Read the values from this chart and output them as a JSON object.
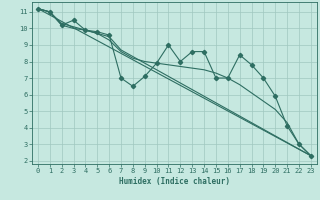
{
  "xlabel": "Humidex (Indice chaleur)",
  "bg_color": "#c6e8e0",
  "grid_color": "#a0c8bf",
  "line_color": "#2e6e62",
  "xlim": [
    -0.5,
    23.5
  ],
  "ylim": [
    1.8,
    11.6
  ],
  "yticks": [
    2,
    3,
    4,
    5,
    6,
    7,
    8,
    9,
    10,
    11
  ],
  "xticks": [
    0,
    1,
    2,
    3,
    4,
    5,
    6,
    7,
    8,
    9,
    10,
    11,
    12,
    13,
    14,
    15,
    16,
    17,
    18,
    19,
    20,
    21,
    22,
    23
  ],
  "series1_x": [
    0,
    1,
    2,
    3,
    4,
    5,
    6,
    7,
    8,
    9,
    10,
    11,
    12,
    13,
    14,
    15,
    16,
    17,
    18,
    19,
    20,
    21,
    22,
    23
  ],
  "series1_y": [
    11.2,
    11.0,
    10.2,
    10.5,
    9.9,
    9.8,
    9.6,
    7.0,
    6.5,
    7.1,
    7.9,
    9.0,
    8.0,
    8.6,
    8.6,
    7.0,
    7.0,
    8.4,
    7.8,
    7.0,
    5.9,
    4.1,
    3.0,
    2.3
  ],
  "series_line1_x": [
    0,
    23
  ],
  "series_line1_y": [
    11.2,
    2.3
  ],
  "series_line2_x": [
    0,
    1,
    2,
    3,
    4,
    5,
    6,
    7,
    8,
    9,
    10,
    11,
    12,
    13,
    14,
    15,
    16,
    17,
    18,
    19,
    20,
    21,
    22,
    23
  ],
  "series_line2_y": [
    11.2,
    11.0,
    10.3,
    10.1,
    9.9,
    9.7,
    9.3,
    8.6,
    8.2,
    8.0,
    7.9,
    7.8,
    7.7,
    7.6,
    7.5,
    7.3,
    7.0,
    6.6,
    6.1,
    5.6,
    5.1,
    4.3,
    3.0,
    2.3
  ],
  "series_line3_x": [
    0,
    1,
    2,
    3,
    4,
    5,
    6,
    7,
    23
  ],
  "series_line3_y": [
    11.2,
    11.0,
    10.2,
    10.0,
    9.9,
    9.7,
    9.5,
    8.7,
    2.3
  ]
}
